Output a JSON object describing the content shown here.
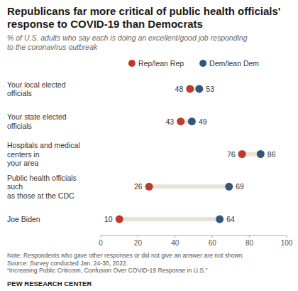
{
  "chart_data": {
    "type": "dumbbell",
    "title": "Republicans far more critical of public health officials'\nresponse to COVID-19 than Democrats",
    "subtitle": "% of U.S. adults who say each is doing an excellent/good job responding\nto the coronavirus outbreak",
    "categories": [
      "Your local elected officials",
      "Your state elected officials",
      "Hospitals and medical centers in\nyour area",
      "Public health officials such\nas those at the CDC",
      "Joe Biden"
    ],
    "series": [
      {
        "name": "Rep/lean Rep",
        "color": "#c0392b",
        "values": [
          48,
          43,
          76,
          26,
          10
        ]
      },
      {
        "name": "Dem/lean Dem",
        "color": "#34567a",
        "values": [
          53,
          49,
          86,
          69,
          64
        ]
      }
    ],
    "color": "#e8e2d9",
    "xlim": [
      0,
      100
    ],
    "xticks": [
      0,
      20,
      40,
      60,
      80,
      100
    ],
    "grid": false,
    "legend": "top",
    "data_labels": true,
    "notes": [
      "Note: Respondents who gave other responses or did not give an answer are not shown.",
      "Source: Survey conducted Jan. 24-30, 2022.",
      "“Increasing Public Criticism, Confusion Over COVID-19 Response in U.S.”"
    ],
    "footer": "PEW RESEARCH CENTER"
  }
}
